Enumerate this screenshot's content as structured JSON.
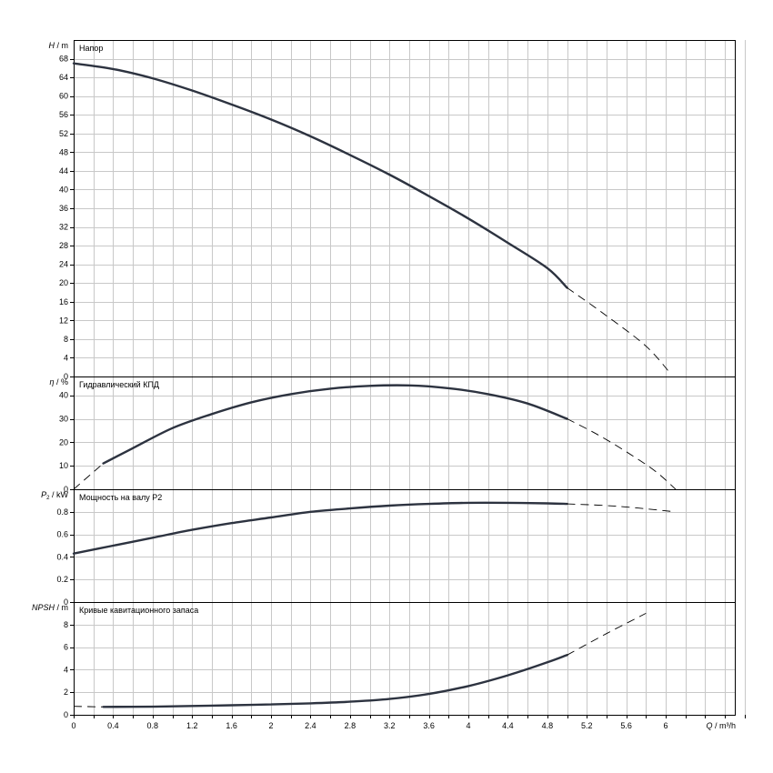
{
  "chart_data": [
    {
      "type": "line",
      "title": "Напор",
      "ylabel_sym": "H",
      "ylabel_unit": "m",
      "ylim": [
        0,
        72
      ],
      "yticks": [
        0,
        4,
        8,
        12,
        16,
        20,
        24,
        28,
        32,
        36,
        40,
        44,
        48,
        52,
        56,
        60,
        64,
        68
      ],
      "series": [
        {
          "style": "solid",
          "x": [
            0,
            0.4,
            0.8,
            1.2,
            1.6,
            2.0,
            2.4,
            2.8,
            3.2,
            3.6,
            4.0,
            4.4,
            4.8,
            5.0
          ],
          "y": [
            67,
            65.8,
            63.8,
            61.2,
            58.2,
            55.0,
            51.4,
            47.4,
            43.2,
            38.6,
            33.8,
            28.6,
            23.2,
            19.0
          ]
        },
        {
          "style": "dashed",
          "x": [
            5.0,
            5.4,
            5.8,
            6.05
          ],
          "y": [
            19.0,
            13.0,
            6.5,
            0.6
          ]
        }
      ]
    },
    {
      "type": "line",
      "title": "Гидравлический КПД",
      "ylabel_sym": "η",
      "ylabel_unit": "%",
      "ylim": [
        0,
        48
      ],
      "yticks": [
        0,
        10,
        20,
        30,
        40
      ],
      "series": [
        {
          "style": "solid",
          "x": [
            0.3,
            0.6,
            1.0,
            1.4,
            1.8,
            2.2,
            2.6,
            3.0,
            3.4,
            3.8,
            4.2,
            4.6,
            5.0
          ],
          "y": [
            11,
            17.5,
            26,
            32,
            37,
            40.5,
            42.8,
            44,
            44.2,
            43,
            40.5,
            36.5,
            30
          ]
        },
        {
          "style": "dashed",
          "x": [
            0,
            0.3
          ],
          "y": [
            0,
            11
          ]
        },
        {
          "style": "dashed",
          "x": [
            5.0,
            5.3,
            5.6,
            5.9,
            6.1
          ],
          "y": [
            30,
            23.5,
            16,
            7.5,
            0
          ]
        }
      ]
    },
    {
      "type": "line",
      "title": "Мощность на валу P2",
      "ylabel_sym": "P",
      "ylabel_sub": "2",
      "ylabel_unit": "kW",
      "ylim": [
        0,
        1.0
      ],
      "yticks": [
        0,
        0.2,
        0.4,
        0.6,
        0.8
      ],
      "series": [
        {
          "style": "solid",
          "x": [
            0,
            0.4,
            0.8,
            1.2,
            1.6,
            2.0,
            2.4,
            2.8,
            3.2,
            3.6,
            4.0,
            4.4,
            4.8,
            5.0
          ],
          "y": [
            0.43,
            0.5,
            0.57,
            0.64,
            0.7,
            0.75,
            0.8,
            0.83,
            0.855,
            0.87,
            0.88,
            0.88,
            0.875,
            0.87
          ]
        },
        {
          "style": "dashed",
          "x": [
            5.0,
            5.5,
            6.1
          ],
          "y": [
            0.87,
            0.85,
            0.8
          ]
        }
      ]
    },
    {
      "type": "line",
      "title": "Кривые кавитационного запаса",
      "ylabel_sym": "NPSH",
      "ylabel_unit": "m",
      "ylim": [
        0,
        10
      ],
      "yticks": [
        0,
        2,
        4,
        6,
        8
      ],
      "series": [
        {
          "style": "dashed",
          "x": [
            0,
            0.3
          ],
          "y": [
            0.75,
            0.7
          ]
        },
        {
          "style": "solid",
          "x": [
            0.3,
            0.8,
            1.2,
            1.6,
            2.0,
            2.4,
            2.8,
            3.2,
            3.6,
            4.0,
            4.4,
            4.8,
            5.0
          ],
          "y": [
            0.7,
            0.72,
            0.78,
            0.85,
            0.92,
            1.02,
            1.16,
            1.4,
            1.85,
            2.55,
            3.5,
            4.65,
            5.3
          ]
        },
        {
          "style": "dashed",
          "x": [
            5.0,
            5.4,
            5.8
          ],
          "y": [
            5.3,
            7.2,
            9.0
          ]
        }
      ]
    }
  ],
  "x_axis": {
    "sym": "Q",
    "unit": "m³/h",
    "ticks": [
      "0",
      "0.4",
      "0.8",
      "1.2",
      "1.6",
      "2",
      "2.4",
      "2.8",
      "3.2",
      "3.6",
      "4",
      "4.4",
      "4.8",
      "5.2",
      "5.6",
      "6"
    ],
    "tick_values": [
      0,
      0.4,
      0.8,
      1.2,
      1.6,
      2.0,
      2.4,
      2.8,
      3.2,
      3.6,
      4.0,
      4.4,
      4.8,
      5.2,
      5.6,
      6.0
    ],
    "xlim": [
      0,
      6.7
    ],
    "grid_step": 0.2
  }
}
